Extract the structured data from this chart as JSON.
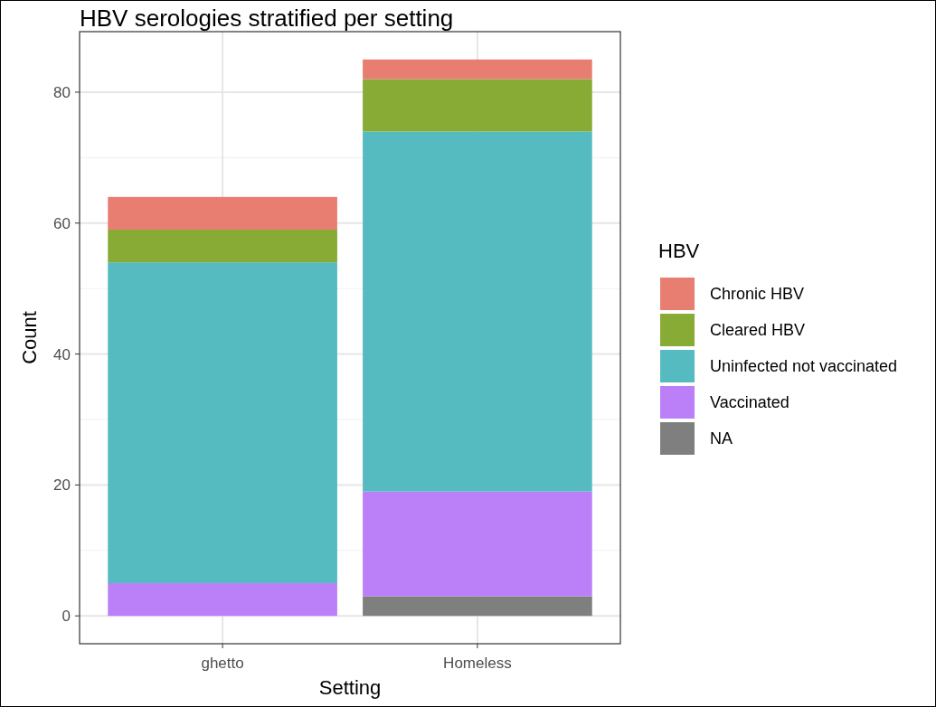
{
  "chart_data": {
    "type": "bar",
    "title": "HBV serologies stratified per setting",
    "xlabel": "Setting",
    "ylabel": "Count",
    "legend_title": "HBV",
    "categories": [
      "ghetto",
      "Homeless"
    ],
    "series": [
      {
        "name": "NA",
        "color": "#7f7f7f",
        "values": [
          0,
          3
        ]
      },
      {
        "name": "Vaccinated",
        "color": "#bb80f8",
        "values": [
          5,
          16
        ]
      },
      {
        "name": "Uninfected not vaccinated",
        "color": "#55bbc1",
        "values": [
          49,
          55
        ]
      },
      {
        "name": "Cleared HBV",
        "color": "#87ab35",
        "values": [
          5,
          8
        ]
      },
      {
        "name": "Chronic HBV",
        "color": "#e87e72",
        "values": [
          5,
          3
        ]
      }
    ],
    "stacked": true,
    "ylim": [
      -4.25,
      89.25
    ],
    "yticks": [
      0,
      20,
      40,
      60,
      80
    ],
    "grid": true,
    "legend": "right"
  }
}
